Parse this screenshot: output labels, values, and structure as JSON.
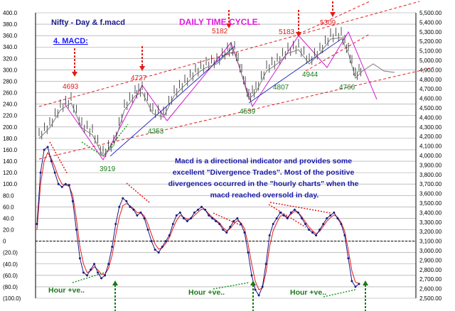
{
  "chart_data": {
    "type": "line",
    "title": "Nifty - Day & f.macd",
    "header_right": "DAILY TIME CYCLE.",
    "section_label": "4. MACD:",
    "left_axis": {
      "ticks": [
        "400.0",
        "380.0",
        "360.0",
        "340.0",
        "320.0",
        "300.0",
        "280.0",
        "260.0",
        "240.0",
        "220.0",
        "200.0",
        "180.0",
        "160.0",
        "140.0",
        "120.0",
        "100.0",
        "80.0",
        "60.0",
        "40.0",
        "20.0",
        "0",
        "(20.0)",
        "(40.0)",
        "(60.0)",
        "(80.0)",
        "(100.0)"
      ],
      "range": [
        -100,
        400
      ]
    },
    "right_axis": {
      "ticks": [
        "5,500.00",
        "5,400.00",
        "5,300.00",
        "5,200.00",
        "5,100.00",
        "5,000.00",
        "4,900.00",
        "4,800.00",
        "4,700.00",
        "4,600.00",
        "4,500.00",
        "4,400.00",
        "4,300.00",
        "4,200.00",
        "4,100.00",
        "4,000.00",
        "3,900.00",
        "3,800.00",
        "3,700.00",
        "3,600.00",
        "3,500.00",
        "3,400.00",
        "3,300.00",
        "3,200.00",
        "3,100.00",
        "3,000.00",
        "2,900.00",
        "2,800.00",
        "2,700.00",
        "2,600.00",
        "2,500.00"
      ],
      "range": [
        2500,
        5500
      ]
    },
    "grid": true,
    "price_points": [
      {
        "label": "4693",
        "value": 4693,
        "color": "#e41a1a"
      },
      {
        "label": "4727",
        "value": 4727,
        "color": "#e41a1a"
      },
      {
        "label": "5182",
        "value": 5182,
        "color": "#e41a1a"
      },
      {
        "label": "5183",
        "value": 5183,
        "color": "#e41a1a"
      },
      {
        "label": "5309",
        "value": 5309,
        "color": "#e41a1a"
      },
      {
        "label": "3919",
        "value": 3919,
        "color": "#1a7a1a"
      },
      {
        "label": "4353",
        "value": 4353,
        "color": "#1a7a1a"
      },
      {
        "label": "4539",
        "value": 4539,
        "color": "#1a7a1a"
      },
      {
        "label": "4807",
        "value": 4807,
        "color": "#1a7a1a"
      },
      {
        "label": "4944",
        "value": 4944,
        "color": "#1a7a1a"
      },
      {
        "label": "4766",
        "value": 4766,
        "color": "#1a7a1a"
      }
    ],
    "annotation_text": "Macd is a directional indicator and provides some excellent \"Divergence Trades\". Most of the positive divergences occurred in the \"hourly charts\" when the macd reached oversold in day.",
    "hour_labels": [
      "Hour +ve..",
      "Hour +ve..",
      "Hour +ve.."
    ],
    "series": [
      {
        "values": [
          30,
          120,
          160,
          165,
          140,
          120,
          100,
          95,
          100,
          98,
          70,
          20,
          -30,
          -55,
          -60,
          -50,
          -40,
          -55,
          -65,
          -60,
          -40,
          -10,
          30,
          60,
          75,
          70,
          60,
          55,
          45,
          50,
          40,
          20,
          0,
          -15,
          -20,
          -10,
          0,
          10,
          30,
          45,
          50,
          40,
          35,
          40,
          50,
          55,
          60,
          55,
          45,
          40,
          35,
          30,
          20,
          15,
          25,
          35,
          40,
          30,
          15,
          -20,
          -60,
          -85,
          -95,
          -80,
          -40,
          10,
          30,
          40,
          50,
          45,
          40,
          50,
          55,
          50,
          40,
          30,
          20,
          15,
          10,
          20,
          30,
          40,
          45,
          50,
          40,
          30,
          10,
          -30,
          -70,
          -80,
          -75
        ]
      },
      {
        "values": [
          20,
          100,
          140,
          155,
          145,
          130,
          112,
          100,
          98,
          96,
          80,
          40,
          -10,
          -40,
          -55,
          -52,
          -45,
          -50,
          -58,
          -58,
          -48,
          -25,
          10,
          42,
          62,
          66,
          62,
          57,
          50,
          50,
          44,
          30,
          12,
          -5,
          -14,
          -12,
          -4,
          6,
          22,
          36,
          45,
          42,
          38,
          39,
          45,
          51,
          56,
          55,
          48,
          42,
          37,
          32,
          24,
          18,
          22,
          30,
          36,
          32,
          22,
          -5,
          -40,
          -70,
          -85,
          -82,
          -55,
          -10,
          18,
          32,
          44,
          45,
          42,
          47,
          52,
          50,
          43,
          34,
          25,
          18,
          13,
          17,
          26,
          35,
          41,
          46,
          42,
          33,
          17,
          -15,
          -52,
          -72,
          -74
        ]
      }
    ]
  }
}
